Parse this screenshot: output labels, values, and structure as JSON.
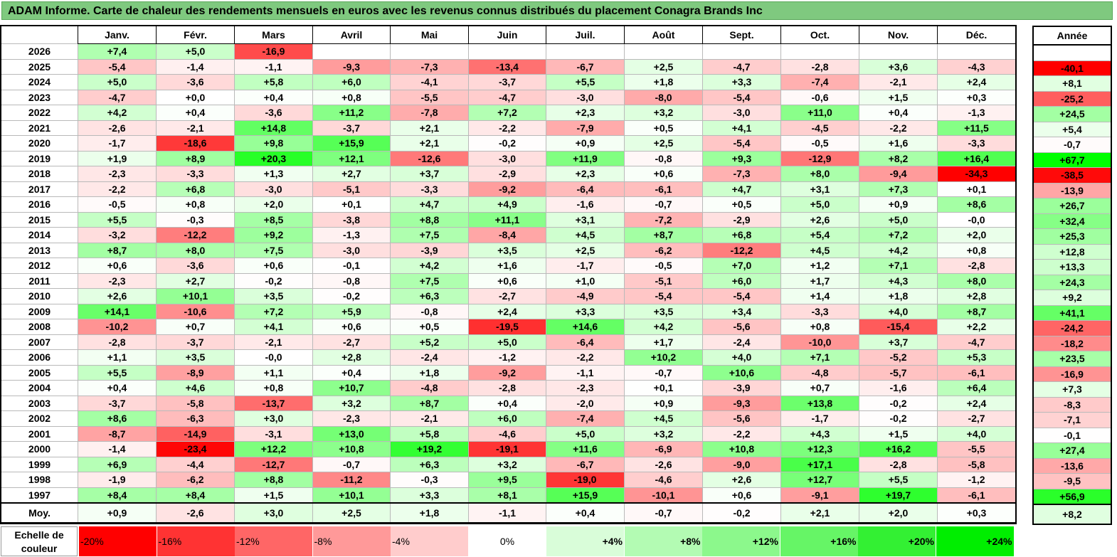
{
  "title": "ADAM Informe. Carte de chaleur des rendements mensuels en euros avec les revenus connus distribués du placement Conagra Brands Inc",
  "months": [
    "Janv.",
    "Févr.",
    "Mars",
    "Avril",
    "Mai",
    "Juin",
    "Juil.",
    "Août",
    "Sept.",
    "Oct.",
    "Nov.",
    "Déc."
  ],
  "annual_header": "Année",
  "avg_label": "Moy.",
  "scale_label": "Echelle de couleur",
  "scale": [
    "-20%",
    "-16%",
    "-12%",
    "-8%",
    "-4%",
    "0%",
    "+4%",
    "+8%",
    "+12%",
    "+16%",
    "+20%",
    "+24%"
  ],
  "chart_data": {
    "type": "heatmap",
    "title": "ADAM Informe. Carte de chaleur des rendements mensuels en euros avec les revenus connus distribués du placement Conagra Brands Inc",
    "columns": [
      "Janv.",
      "Févr.",
      "Mars",
      "Avril",
      "Mai",
      "Juin",
      "Juil.",
      "Août",
      "Sept.",
      "Oct.",
      "Nov.",
      "Déc."
    ],
    "rows": [
      {
        "year": "2026",
        "values": [
          "+7,4",
          "+5,0",
          "-16,9",
          "",
          "",
          "",
          "",
          "",
          "",
          "",
          "",
          ""
        ],
        "annual": ""
      },
      {
        "year": "2025",
        "values": [
          "-5,4",
          "-1,4",
          "-1,1",
          "-9,3",
          "-7,3",
          "-13,4",
          "-6,7",
          "+2,5",
          "-4,7",
          "-2,8",
          "+3,6",
          "-4,3"
        ],
        "annual": "-40,1"
      },
      {
        "year": "2024",
        "values": [
          "+5,0",
          "-3,6",
          "+5,8",
          "+6,0",
          "-4,1",
          "-3,7",
          "+5,5",
          "+1,8",
          "+3,3",
          "-7,4",
          "-2,1",
          "+2,4"
        ],
        "annual": "+8,1"
      },
      {
        "year": "2023",
        "values": [
          "-4,7",
          "+0,0",
          "+0,4",
          "+0,8",
          "-5,5",
          "-4,7",
          "-3,0",
          "-8,0",
          "-5,4",
          "-0,6",
          "+1,5",
          "+0,3"
        ],
        "annual": "-25,2"
      },
      {
        "year": "2022",
        "values": [
          "+4,2",
          "+0,4",
          "-3,6",
          "+11,2",
          "-7,8",
          "+7,2",
          "+2,3",
          "+3,2",
          "-3,0",
          "+11,0",
          "+0,4",
          "-1,3"
        ],
        "annual": "+24,5"
      },
      {
        "year": "2021",
        "values": [
          "-2,6",
          "-2,1",
          "+14,8",
          "-3,7",
          "+2,1",
          "-2,2",
          "-7,9",
          "+0,5",
          "+4,1",
          "-4,5",
          "-2,2",
          "+11,5"
        ],
        "annual": "+5,4"
      },
      {
        "year": "2020",
        "values": [
          "-1,7",
          "-18,6",
          "+9,8",
          "+15,9",
          "+2,1",
          "-0,2",
          "+0,9",
          "+2,5",
          "-5,4",
          "-0,5",
          "+1,6",
          "-3,3"
        ],
        "annual": "-0,7"
      },
      {
        "year": "2019",
        "values": [
          "+1,9",
          "+8,9",
          "+20,3",
          "+12,1",
          "-12,6",
          "-3,0",
          "+11,9",
          "-0,8",
          "+9,3",
          "-12,9",
          "+8,2",
          "+16,4"
        ],
        "annual": "+67,7"
      },
      {
        "year": "2018",
        "values": [
          "-2,3",
          "-3,3",
          "+1,3",
          "+2,7",
          "+3,7",
          "-2,9",
          "+2,3",
          "+0,6",
          "-7,3",
          "+8,0",
          "-9,4",
          "-34,3"
        ],
        "annual": "-38,5"
      },
      {
        "year": "2017",
        "values": [
          "-2,2",
          "+6,8",
          "-3,0",
          "-5,1",
          "-3,3",
          "-9,2",
          "-6,4",
          "-6,1",
          "+4,7",
          "+3,1",
          "+7,3",
          "+0,1"
        ],
        "annual": "-13,9"
      },
      {
        "year": "2016",
        "values": [
          "-0,5",
          "+0,8",
          "+2,0",
          "+0,1",
          "+4,7",
          "+4,9",
          "-1,6",
          "-0,7",
          "+0,5",
          "+5,0",
          "+0,9",
          "+8,6"
        ],
        "annual": "+26,7"
      },
      {
        "year": "2015",
        "values": [
          "+5,5",
          "-0,3",
          "+8,5",
          "-3,8",
          "+8,8",
          "+11,1",
          "+3,1",
          "-7,2",
          "-2,9",
          "+2,6",
          "+5,0",
          "-0,0"
        ],
        "annual": "+32,4"
      },
      {
        "year": "2014",
        "values": [
          "-3,2",
          "-12,2",
          "+9,2",
          "-1,3",
          "+7,5",
          "-8,4",
          "+4,5",
          "+8,7",
          "+6,8",
          "+5,4",
          "+7,2",
          "+2,0"
        ],
        "annual": "+25,3"
      },
      {
        "year": "2013",
        "values": [
          "+8,7",
          "+8,0",
          "+7,5",
          "-3,0",
          "-3,9",
          "+3,5",
          "+2,5",
          "-6,2",
          "-12,2",
          "+4,5",
          "+4,2",
          "+0,8"
        ],
        "annual": "+12,8"
      },
      {
        "year": "2012",
        "values": [
          "+0,6",
          "-3,6",
          "+0,6",
          "-0,1",
          "+4,2",
          "+1,6",
          "-1,7",
          "-0,5",
          "+7,0",
          "+1,2",
          "+7,1",
          "-2,8"
        ],
        "annual": "+13,3"
      },
      {
        "year": "2011",
        "values": [
          "-2,3",
          "+2,7",
          "-0,2",
          "-0,8",
          "+7,5",
          "+0,6",
          "+1,0",
          "-5,1",
          "+6,0",
          "+1,7",
          "+4,3",
          "+8,0"
        ],
        "annual": "+24,3"
      },
      {
        "year": "2010",
        "values": [
          "+2,6",
          "+10,1",
          "+3,5",
          "-0,2",
          "+6,3",
          "-2,7",
          "-4,9",
          "-5,4",
          "-5,4",
          "+1,4",
          "+1,8",
          "+2,8"
        ],
        "annual": "+9,2"
      },
      {
        "year": "2009",
        "values": [
          "+14,1",
          "-10,6",
          "+7,2",
          "+5,9",
          "-0,8",
          "+2,4",
          "+3,3",
          "+3,5",
          "+3,4",
          "-3,3",
          "+4,0",
          "+8,7"
        ],
        "annual": "+41,1"
      },
      {
        "year": "2008",
        "values": [
          "-10,2",
          "+0,7",
          "+4,1",
          "+0,6",
          "+0,5",
          "-19,5",
          "+14,6",
          "+4,2",
          "-5,6",
          "+0,8",
          "-15,4",
          "+2,2"
        ],
        "annual": "-24,2"
      },
      {
        "year": "2007",
        "values": [
          "-2,8",
          "-3,7",
          "-2,1",
          "-2,7",
          "+5,2",
          "+5,0",
          "-6,4",
          "+1,7",
          "-2,4",
          "-10,0",
          "+3,7",
          "-4,7"
        ],
        "annual": "-18,2"
      },
      {
        "year": "2006",
        "values": [
          "+1,1",
          "+3,5",
          "-0,0",
          "+2,8",
          "-2,4",
          "-1,2",
          "-2,2",
          "+10,2",
          "+4,0",
          "+7,1",
          "-5,2",
          "+5,3"
        ],
        "annual": "+23,5"
      },
      {
        "year": "2005",
        "values": [
          "+5,5",
          "-8,9",
          "+1,1",
          "+0,4",
          "+1,8",
          "-9,2",
          "-1,1",
          "-0,7",
          "+10,6",
          "-4,8",
          "-5,7",
          "-6,1"
        ],
        "annual": "-16,9"
      },
      {
        "year": "2004",
        "values": [
          "+0,4",
          "+4,6",
          "+0,8",
          "+10,7",
          "-4,8",
          "-2,8",
          "-2,3",
          "+0,1",
          "-3,9",
          "+0,7",
          "-1,6",
          "+6,4"
        ],
        "annual": "+7,3"
      },
      {
        "year": "2003",
        "values": [
          "-3,7",
          "-5,8",
          "-13,7",
          "+3,2",
          "+8,7",
          "+0,4",
          "-2,0",
          "+0,9",
          "-9,3",
          "+13,8",
          "-0,2",
          "+2,4"
        ],
        "annual": "-8,3"
      },
      {
        "year": "2002",
        "values": [
          "+8,6",
          "-6,3",
          "+3,0",
          "-2,3",
          "-2,1",
          "+6,0",
          "-7,4",
          "+4,5",
          "-5,6",
          "-1,7",
          "-0,2",
          "-2,7"
        ],
        "annual": "-7,1"
      },
      {
        "year": "2001",
        "values": [
          "-8,7",
          "-14,9",
          "-3,1",
          "+13,0",
          "+5,8",
          "-4,6",
          "+5,0",
          "+3,2",
          "-2,2",
          "+4,3",
          "+1,5",
          "+4,0"
        ],
        "annual": "-0,1"
      },
      {
        "year": "2000",
        "values": [
          "-1,4",
          "-23,4",
          "+12,2",
          "+10,8",
          "+19,2",
          "-19,1",
          "+11,6",
          "-6,9",
          "+10,8",
          "+12,3",
          "+16,2",
          "-5,5"
        ],
        "annual": "+27,4"
      },
      {
        "year": "1999",
        "values": [
          "+6,9",
          "-4,4",
          "-12,7",
          "-0,7",
          "+6,3",
          "+3,2",
          "-6,7",
          "-2,6",
          "-9,0",
          "+17,1",
          "-2,8",
          "-5,8"
        ],
        "annual": "-13,6"
      },
      {
        "year": "1998",
        "values": [
          "-1,9",
          "-6,2",
          "+8,8",
          "-11,2",
          "-0,3",
          "+9,5",
          "-19,0",
          "-4,6",
          "+2,6",
          "+12,7",
          "+5,5",
          "-1,2"
        ],
        "annual": "-9,5"
      },
      {
        "year": "1997",
        "values": [
          "+8,4",
          "+8,4",
          "+1,5",
          "+10,1",
          "+3,3",
          "+8,1",
          "+15,9",
          "-10,1",
          "+0,6",
          "-9,1",
          "+19,7",
          "-6,1"
        ],
        "annual": "+56,9"
      }
    ],
    "averages": [
      "+0,9",
      "-2,6",
      "+3,0",
      "+2,5",
      "+1,8",
      "-1,1",
      "+0,4",
      "-0,7",
      "-0,2",
      "+2,1",
      "+2,0",
      "+0,3"
    ],
    "average_annual": "+8,2"
  }
}
